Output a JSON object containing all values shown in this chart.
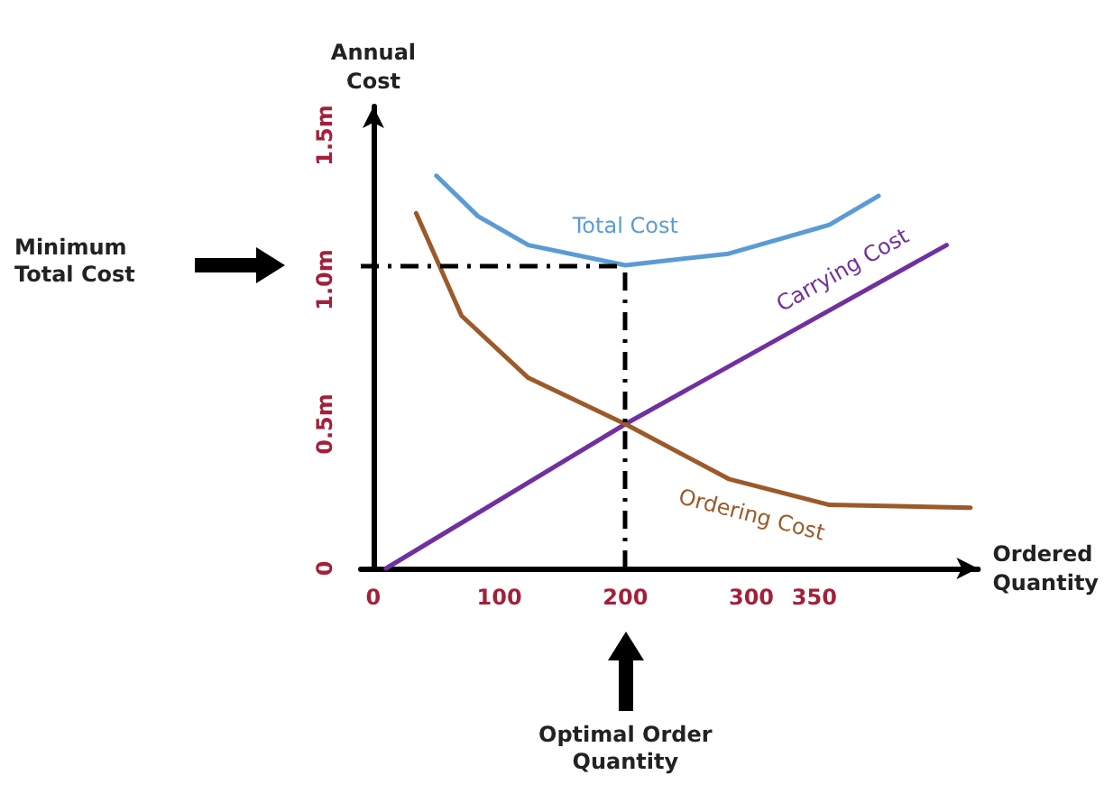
{
  "chart_data": {
    "type": "line",
    "xlabel": "Ordered Quantity",
    "ylabel": "Annual Cost",
    "xlim": [
      -10,
      480
    ],
    "xticks": [
      0,
      100,
      200,
      300,
      350
    ],
    "ylim": [
      0,
      1.6
    ],
    "yticks": [
      0,
      {
        "value": 0.5,
        "label": "0.5m"
      },
      {
        "value": 1.0,
        "label": "1.0m"
      },
      {
        "value": 1.5,
        "label": "1.5m"
      }
    ],
    "series": [
      {
        "name": "Total Cost",
        "color": "#5b9bd5",
        "x": [
          50,
          83,
          123,
          200,
          282,
          362,
          401
        ],
        "values": [
          1.36,
          1.22,
          1.12,
          1.05,
          1.09,
          1.19,
          1.29
        ]
      },
      {
        "name": "Carrying Cost",
        "color": "#7030a0",
        "x": [
          10,
          200,
          455
        ],
        "values": [
          0,
          0.5,
          1.12
        ]
      },
      {
        "name": "Ordering Cost",
        "color": "#9c5a2a",
        "x": [
          34,
          70,
          123,
          200,
          282,
          362,
          474
        ],
        "values": [
          1.23,
          0.875,
          0.66,
          0.5,
          0.31,
          0.22,
          0.21
        ]
      }
    ],
    "ref_lines": [
      {
        "axis": "y",
        "value": 1.05
      },
      {
        "axis": "x",
        "value": 200
      }
    ],
    "line_style": "solid",
    "marker": "none",
    "grid": false,
    "legend": false,
    "annotations": [
      "Minimum Total Cost",
      "Optimal Order Quantity"
    ]
  }
}
